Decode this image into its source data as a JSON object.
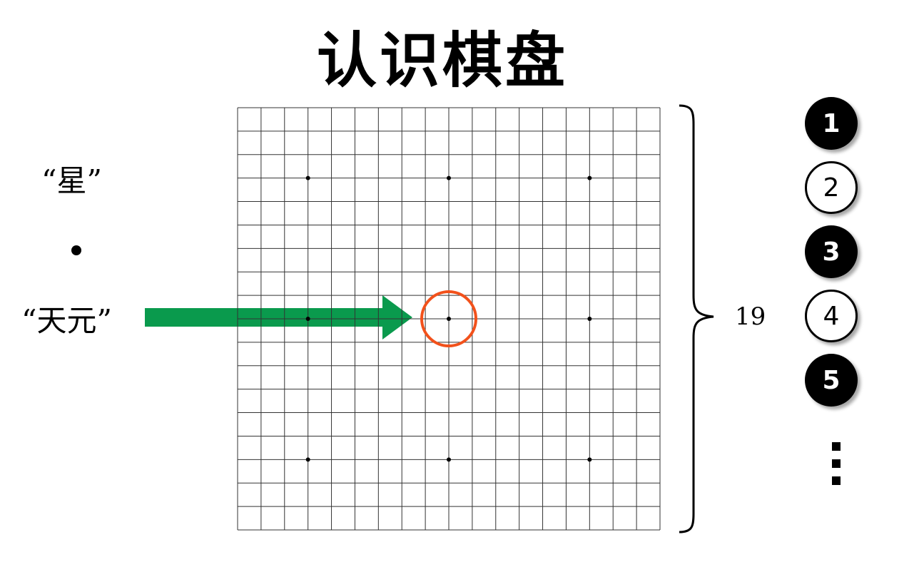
{
  "title": "认识棋盘",
  "labels": {
    "star": "“星”",
    "tengen": "“天元”"
  },
  "board": {
    "lines": 19,
    "size_label": "19",
    "star_points": [
      [
        3,
        3
      ],
      [
        3,
        9
      ],
      [
        3,
        15
      ],
      [
        9,
        3
      ],
      [
        9,
        9
      ],
      [
        9,
        15
      ],
      [
        15,
        3
      ],
      [
        15,
        9
      ],
      [
        15,
        15
      ]
    ],
    "highlight_point": [
      9,
      9
    ]
  },
  "stones": [
    {
      "number": "1",
      "color": "black"
    },
    {
      "number": "2",
      "color": "white"
    },
    {
      "number": "3",
      "color": "black"
    },
    {
      "number": "4",
      "color": "white"
    },
    {
      "number": "5",
      "color": "black"
    }
  ],
  "colors": {
    "arrow": "#0a9a4d",
    "highlight": "#f2511b",
    "grid": "#333333"
  }
}
